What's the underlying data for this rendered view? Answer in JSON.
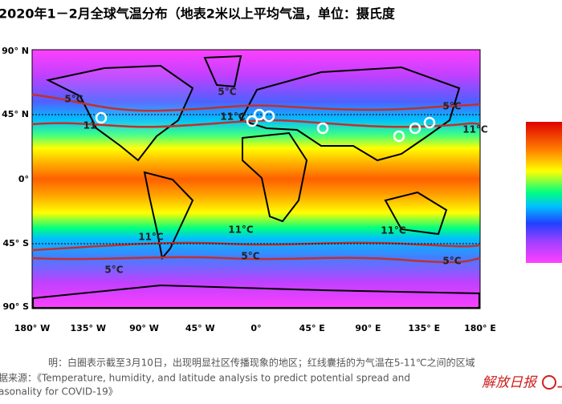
{
  "title": "2020年1－2月全球气温分布（地表2米以上平均气温，单位：摄氏度",
  "map": {
    "lat_ticks": [
      "90° N",
      "45° N",
      "0°",
      "45° S",
      "90° S"
    ],
    "lon_ticks": [
      "180° W",
      "135° W",
      "90° W",
      "45° W",
      "0°",
      "45° E",
      "90° E",
      "135° E",
      "180° E"
    ],
    "contour_labels": [
      "5°C",
      "11",
      "5°C",
      "11°C",
      "5°C",
      "11°C",
      "11°C",
      "11°C",
      "11°C",
      "5°C",
      "5°C",
      "5°C"
    ]
  },
  "notes": [
    "明：白圈表示截至3月10日，出现明显社区传播现象的地区；红线囊括的为气温在5-11℃之间的区域",
    "据来源：《Temperature, humidity, and latitude analysis to predict potential spread and",
    "asonality for COVID-19》"
  ],
  "logos": [
    "解放日报",
    "上"
  ]
}
